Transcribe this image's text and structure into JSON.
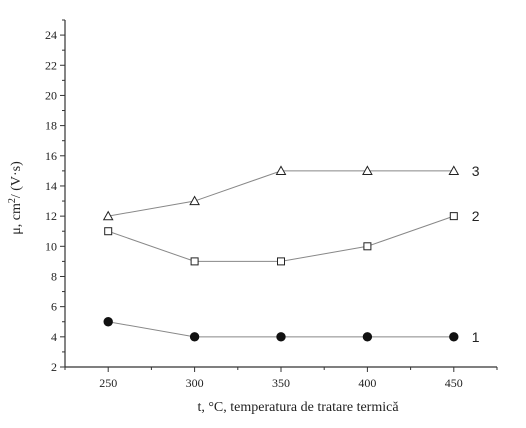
{
  "chart_data": {
    "type": "line",
    "title": "",
    "xlabel": "t, °C, temperatura de tratare termică",
    "ylabel_parts": {
      "prefix": "μ, cm",
      "superscript": "2",
      "suffix": "/ (V·s)"
    },
    "xlim": [
      225,
      475
    ],
    "ylim": [
      2,
      25
    ],
    "x_ticks": [
      250,
      300,
      350,
      400,
      450
    ],
    "y_ticks": [
      2,
      4,
      6,
      8,
      10,
      12,
      14,
      16,
      18,
      20,
      22,
      24
    ],
    "grid": false,
    "x": [
      250,
      300,
      350,
      400,
      450
    ],
    "series": [
      {
        "name": "1",
        "marker": "filled-circle",
        "values": [
          5,
          4,
          4,
          4,
          4
        ]
      },
      {
        "name": "2",
        "marker": "open-square",
        "values": [
          11,
          9,
          9,
          10,
          12
        ]
      },
      {
        "name": "3",
        "marker": "open-triangle",
        "values": [
          12,
          13,
          15,
          15,
          15
        ]
      }
    ],
    "colors": {
      "line": "#888888",
      "marker_stroke": "#222222",
      "axis": "#333333",
      "filled_marker": "#111111"
    }
  }
}
